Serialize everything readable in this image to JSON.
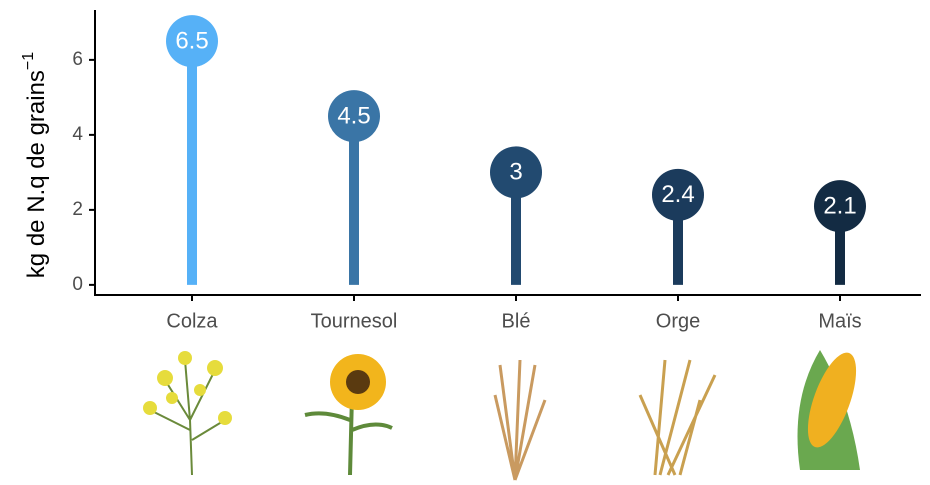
{
  "chart_data": {
    "type": "lollipop",
    "y_label": "kg de N.q de grains",
    "y_label_sup": "−1",
    "categories": [
      "Colza",
      "Tournesol",
      "Blé",
      "Orge",
      "Maïs"
    ],
    "values": [
      6.5,
      4.5,
      3,
      2.4,
      2.1
    ],
    "colors": [
      "#56b1f7",
      "#3a75a6",
      "#224a70",
      "#1b3b5c",
      "#132b43"
    ],
    "ylim": [
      -0.27,
      7.33
    ],
    "yticks": [
      0,
      2,
      4,
      6
    ],
    "grid": false
  }
}
